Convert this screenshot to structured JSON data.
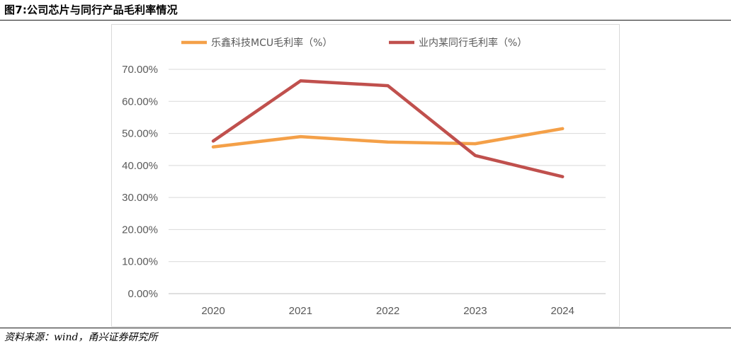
{
  "figure": {
    "title": "图7:公司芯片与同行产品毛利率情况",
    "source": "资料来源：wind，甬兴证券研究所"
  },
  "chart_data": {
    "type": "line",
    "categories": [
      "2020",
      "2021",
      "2022",
      "2023",
      "2024"
    ],
    "series": [
      {
        "name": "乐鑫科技MCU毛利率（%）",
        "color": "#F4A048",
        "values": [
          45.8,
          49.0,
          47.3,
          46.8,
          51.5
        ]
      },
      {
        "name": "业内某同行毛利率（%）",
        "color": "#C0504D",
        "values": [
          47.6,
          66.4,
          64.9,
          43.1,
          36.5
        ]
      }
    ],
    "ylim": [
      0,
      70
    ],
    "yticks": [
      0,
      10,
      20,
      30,
      40,
      50,
      60,
      70
    ],
    "ytick_labels": [
      "0.00%",
      "10.00%",
      "20.00%",
      "30.00%",
      "40.00%",
      "50.00%",
      "60.00%",
      "70.00%"
    ],
    "grid": true,
    "legend": "top",
    "xlabel": "",
    "ylabel": ""
  }
}
